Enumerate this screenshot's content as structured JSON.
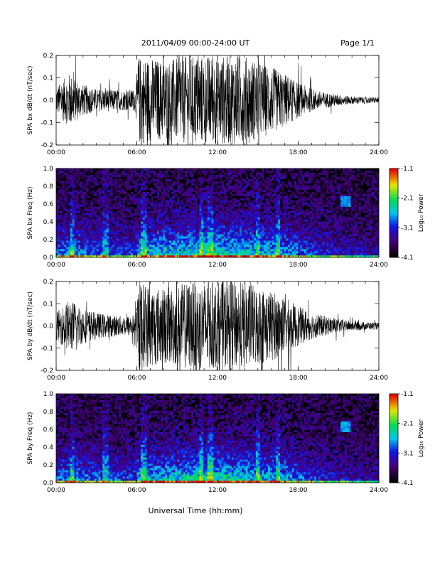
{
  "header": {
    "date_range": "2011/04/09  00:00-24:00 UT",
    "page": "Page 1/1"
  },
  "footer": {
    "xlabel": "Universal Time (hh:mm)"
  },
  "chart_data": [
    {
      "type": "line",
      "ylabel": "SPA bx dB/dt (nT/sec)",
      "xlim": [
        0,
        24
      ],
      "ylim": [
        -0.2,
        0.2
      ],
      "x_ticks": [
        "00:00",
        "06:00",
        "12:00",
        "18:00",
        "24:00"
      ],
      "y_ticks": [
        "-0.2",
        "-0.1",
        "0.0",
        "0.1",
        "0.2"
      ],
      "y_tick_values": [
        -0.2,
        -0.1,
        0.0,
        0.1,
        0.2
      ],
      "envelope": {
        "hours": [
          0,
          1,
          2,
          3,
          4,
          5,
          5.9,
          6.1,
          8,
          10,
          12,
          14,
          16,
          17,
          18,
          19,
          20,
          21,
          22,
          23,
          24
        ],
        "amplitude": [
          0.06,
          0.12,
          0.07,
          0.05,
          0.05,
          0.045,
          0.05,
          0.2,
          0.18,
          0.2,
          0.2,
          0.2,
          0.15,
          0.12,
          0.08,
          0.05,
          0.035,
          0.025,
          0.018,
          0.015,
          0.012
        ]
      },
      "color": "#000000"
    },
    {
      "type": "heatmap",
      "ylabel": "SPA bx Freq (Hz)",
      "xlim": [
        0,
        24
      ],
      "ylim": [
        0,
        1
      ],
      "x_ticks": [
        "00:00",
        "06:00",
        "12:00",
        "18:00",
        "24:00"
      ],
      "y_ticks": [
        "0.0",
        "0.2",
        "0.4",
        "0.6",
        "0.8",
        "1.0"
      ],
      "y_tick_values": [
        0,
        0.2,
        0.4,
        0.6,
        0.8,
        1.0
      ],
      "colorbar": {
        "label": "Log₁₀ Power",
        "ticks": [
          "-1.1",
          "-2.1",
          "-3.1",
          "-4.1"
        ],
        "tick_values": [
          -1.1,
          -2.1,
          -3.1,
          -4.1
        ],
        "range": [
          -4.1,
          -1.1
        ]
      },
      "band_hours": [
        1.2,
        3.7,
        6.5,
        10.8,
        11.5,
        15.0,
        16.5
      ],
      "spot": {
        "hour": 21.5,
        "freq": 0.63
      }
    },
    {
      "type": "line",
      "ylabel": "SPA by dB/dt (nT/sec)",
      "xlim": [
        0,
        24
      ],
      "ylim": [
        -0.2,
        0.2
      ],
      "x_ticks": [
        "00:00",
        "06:00",
        "12:00",
        "18:00",
        "24:00"
      ],
      "y_ticks": [
        "-0.2",
        "-0.1",
        "0.0",
        "0.1",
        "0.2"
      ],
      "y_tick_values": [
        -0.2,
        -0.1,
        0.0,
        0.1,
        0.2
      ],
      "envelope": {
        "hours": [
          0,
          1,
          2,
          3,
          4,
          5,
          5.9,
          6.1,
          8,
          10,
          12,
          14,
          16,
          17,
          18,
          19,
          20,
          21,
          22,
          23,
          24
        ],
        "amplitude": [
          0.06,
          0.12,
          0.08,
          0.06,
          0.05,
          0.045,
          0.05,
          0.2,
          0.17,
          0.2,
          0.2,
          0.2,
          0.16,
          0.13,
          0.09,
          0.06,
          0.045,
          0.03,
          0.022,
          0.018,
          0.015
        ]
      },
      "color": "#000000"
    },
    {
      "type": "heatmap",
      "ylabel": "SPA by Freq (Hz)",
      "xlim": [
        0,
        24
      ],
      "ylim": [
        0,
        1
      ],
      "x_ticks": [
        "00:00",
        "06:00",
        "12:00",
        "18:00",
        "24:00"
      ],
      "y_ticks": [
        "0.0",
        "0.2",
        "0.4",
        "0.6",
        "0.8",
        "1.0"
      ],
      "y_tick_values": [
        0,
        0.2,
        0.4,
        0.6,
        0.8,
        1.0
      ],
      "colorbar": {
        "label": "Log₁₀ Power",
        "ticks": [
          "-1.1",
          "-2.1",
          "-3.1",
          "-4.1"
        ],
        "tick_values": [
          -1.1,
          -2.1,
          -3.1,
          -4.1
        ],
        "range": [
          -4.1,
          -1.1
        ]
      },
      "band_hours": [
        1.2,
        3.7,
        6.5,
        10.8,
        11.5,
        15.0,
        16.5
      ],
      "spot": {
        "hour": 21.5,
        "freq": 0.63
      }
    }
  ]
}
